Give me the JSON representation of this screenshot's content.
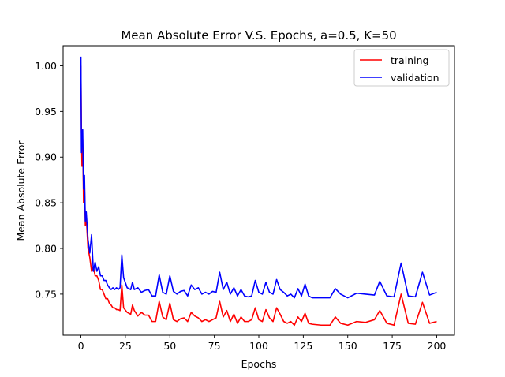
{
  "chart_data": {
    "type": "line",
    "title": "Mean Absolute Error V.S. Epochs, a=0.5, K=50",
    "xlabel": "Epochs",
    "ylabel": "Mean Absolute Error",
    "xlim": [
      -10,
      210
    ],
    "ylim": [
      0.705,
      1.022
    ],
    "xticks": [
      0,
      25,
      50,
      75,
      100,
      125,
      150,
      175,
      200
    ],
    "yticks": [
      0.75,
      0.8,
      0.85,
      0.9,
      0.95,
      1.0
    ],
    "ytick_labels": [
      "0.75",
      "0.80",
      "0.85",
      "0.90",
      "0.95",
      "1.00"
    ],
    "grid": false,
    "legend_position": "top-right",
    "series": [
      {
        "name": "training",
        "color": "#ff0000",
        "x": [
          0,
          0.3,
          0.6,
          1,
          1.5,
          2,
          2.5,
          3,
          4,
          5,
          6,
          7,
          8,
          9,
          10,
          11,
          12,
          13,
          14,
          15,
          16,
          17,
          18,
          19,
          20,
          21,
          22,
          23,
          24,
          26,
          28,
          29,
          30,
          32,
          34,
          36,
          38,
          40,
          42,
          44,
          46,
          48,
          50,
          52,
          54,
          56,
          58,
          60,
          62,
          64,
          66,
          68,
          70,
          72,
          74,
          76,
          78,
          80,
          82,
          84,
          86,
          88,
          90,
          92,
          94,
          96,
          98,
          100,
          102,
          104,
          106,
          108,
          110,
          112,
          114,
          116,
          118,
          120,
          122,
          124,
          126,
          128,
          130,
          135,
          140,
          143,
          146,
          150,
          155,
          160,
          165,
          168,
          172,
          176,
          180,
          184,
          188,
          192,
          196,
          200
        ],
        "y": [
          1.0,
          0.93,
          0.89,
          0.92,
          0.85,
          0.87,
          0.825,
          0.835,
          0.8,
          0.79,
          0.775,
          0.78,
          0.77,
          0.77,
          0.765,
          0.755,
          0.755,
          0.75,
          0.745,
          0.745,
          0.74,
          0.738,
          0.735,
          0.735,
          0.733,
          0.733,
          0.732,
          0.76,
          0.735,
          0.73,
          0.728,
          0.738,
          0.732,
          0.726,
          0.73,
          0.727,
          0.727,
          0.72,
          0.72,
          0.742,
          0.725,
          0.722,
          0.74,
          0.722,
          0.72,
          0.723,
          0.724,
          0.72,
          0.73,
          0.726,
          0.724,
          0.72,
          0.722,
          0.72,
          0.722,
          0.724,
          0.742,
          0.725,
          0.732,
          0.72,
          0.728,
          0.718,
          0.725,
          0.72,
          0.72,
          0.722,
          0.735,
          0.722,
          0.72,
          0.733,
          0.724,
          0.72,
          0.735,
          0.728,
          0.72,
          0.718,
          0.72,
          0.716,
          0.725,
          0.72,
          0.729,
          0.718,
          0.717,
          0.716,
          0.716,
          0.725,
          0.718,
          0.716,
          0.72,
          0.719,
          0.722,
          0.732,
          0.718,
          0.716,
          0.75,
          0.718,
          0.717,
          0.741,
          0.718,
          0.72
        ]
      },
      {
        "name": "validation",
        "color": "#0000ff",
        "x": [
          0,
          0.3,
          0.6,
          1,
          1.5,
          2,
          2.5,
          3,
          4,
          5,
          6,
          7,
          8,
          9,
          10,
          11,
          12,
          13,
          14,
          15,
          16,
          17,
          18,
          19,
          20,
          21,
          22,
          23,
          24,
          26,
          28,
          29,
          30,
          32,
          34,
          36,
          38,
          40,
          42,
          44,
          46,
          48,
          50,
          52,
          54,
          56,
          58,
          60,
          62,
          64,
          66,
          68,
          70,
          72,
          74,
          76,
          78,
          80,
          82,
          84,
          86,
          88,
          90,
          92,
          94,
          96,
          98,
          100,
          102,
          104,
          106,
          108,
          110,
          112,
          114,
          116,
          118,
          120,
          122,
          124,
          126,
          128,
          130,
          135,
          140,
          143,
          146,
          150,
          155,
          160,
          165,
          168,
          172,
          176,
          180,
          184,
          188,
          192,
          196,
          200
        ],
        "y": [
          1.01,
          0.905,
          0.92,
          0.93,
          0.865,
          0.88,
          0.83,
          0.84,
          0.81,
          0.795,
          0.815,
          0.775,
          0.785,
          0.775,
          0.78,
          0.77,
          0.77,
          0.765,
          0.765,
          0.76,
          0.757,
          0.755,
          0.757,
          0.755,
          0.757,
          0.755,
          0.757,
          0.793,
          0.768,
          0.757,
          0.755,
          0.763,
          0.755,
          0.757,
          0.752,
          0.754,
          0.755,
          0.748,
          0.748,
          0.771,
          0.752,
          0.75,
          0.77,
          0.753,
          0.75,
          0.753,
          0.754,
          0.748,
          0.76,
          0.755,
          0.757,
          0.75,
          0.752,
          0.75,
          0.753,
          0.752,
          0.774,
          0.755,
          0.763,
          0.75,
          0.757,
          0.748,
          0.755,
          0.748,
          0.747,
          0.748,
          0.765,
          0.752,
          0.75,
          0.763,
          0.752,
          0.75,
          0.766,
          0.755,
          0.752,
          0.748,
          0.75,
          0.746,
          0.756,
          0.748,
          0.761,
          0.748,
          0.746,
          0.746,
          0.746,
          0.756,
          0.75,
          0.746,
          0.751,
          0.75,
          0.749,
          0.764,
          0.748,
          0.747,
          0.784,
          0.748,
          0.747,
          0.774,
          0.749,
          0.752
        ]
      }
    ]
  }
}
